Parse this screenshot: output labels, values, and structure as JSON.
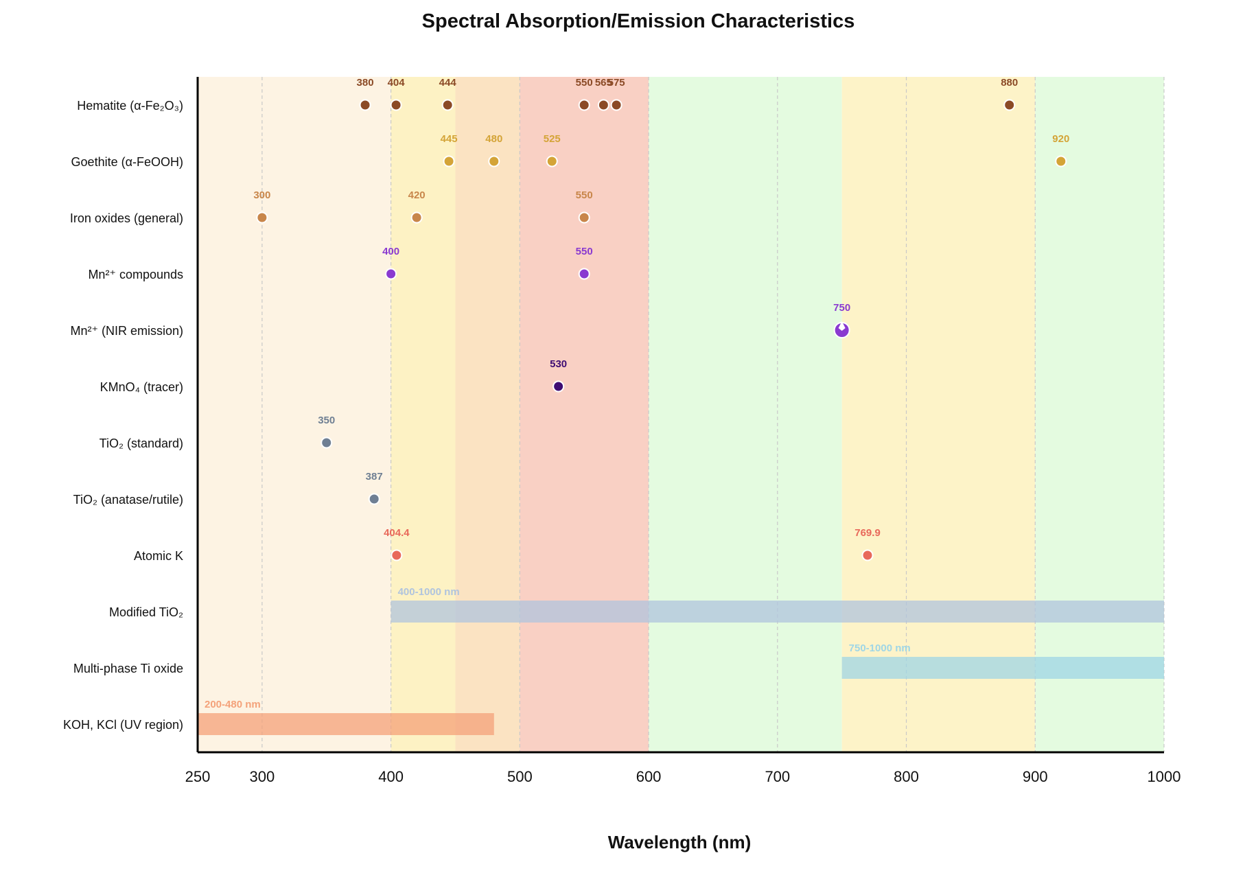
{
  "chart_data": {
    "type": "scatter",
    "title": "Spectral Absorption/Emission Characteristics",
    "xlabel": "Wavelength (nm)",
    "ylabel": "",
    "xlim": [
      250,
      1000
    ],
    "xticks": [
      250,
      300,
      400,
      500,
      600,
      700,
      800,
      900,
      1000
    ],
    "grid": true,
    "legend": "none",
    "bands": [
      {
        "x0": 250,
        "x1": 400,
        "color": "#fdf3e3"
      },
      {
        "x0": 400,
        "x1": 450,
        "color": "#fdf2c4"
      },
      {
        "x0": 450,
        "x1": 500,
        "color": "#fbe3c2"
      },
      {
        "x0": 500,
        "x1": 600,
        "color": "#f9d0c4"
      },
      {
        "x0": 600,
        "x1": 750,
        "color": "#e4fbe0"
      },
      {
        "x0": 750,
        "x1": 900,
        "color": "#fdf3c8"
      },
      {
        "x0": 900,
        "x1": 1000,
        "color": "#e4fbe0"
      }
    ],
    "categories": [
      "Hematite (α-Fe₂O₃)",
      "Goethite (α-FeOOH)",
      "Iron oxides (general)",
      "Mn²⁺ compounds",
      "Mn²⁺ (NIR emission)",
      "KMnO₄ (tracer)",
      "TiO₂ (standard)",
      "TiO₂ (anatase/rutile)",
      "Atomic K",
      "Modified TiO₂",
      "Multi-phase Ti oxide",
      "KOH, KCl (UV region)"
    ],
    "series": [
      {
        "category": "Hematite (α-Fe₂O₃)",
        "type": "points",
        "color": "#8b4a26",
        "points": [
          {
            "x": 380,
            "label": "380"
          },
          {
            "x": 404,
            "label": "404"
          },
          {
            "x": 444,
            "label": "444"
          },
          {
            "x": 550,
            "label": "550"
          },
          {
            "x": 565,
            "label": "565"
          },
          {
            "x": 575,
            "label": "575"
          },
          {
            "x": 880,
            "label": "880"
          }
        ]
      },
      {
        "category": "Goethite (α-FeOOH)",
        "type": "points",
        "color": "#d4a437",
        "points": [
          {
            "x": 445,
            "label": "445"
          },
          {
            "x": 480,
            "label": "480"
          },
          {
            "x": 525,
            "label": "525"
          },
          {
            "x": 920,
            "label": "920"
          }
        ]
      },
      {
        "category": "Iron oxides (general)",
        "type": "points",
        "color": "#c8864a",
        "points": [
          {
            "x": 300,
            "label": "300"
          },
          {
            "x": 420,
            "label": "420"
          },
          {
            "x": 550,
            "label": "550"
          }
        ]
      },
      {
        "category": "Mn²⁺ compounds",
        "type": "points",
        "color": "#8a3ad0",
        "points": [
          {
            "x": 400,
            "label": "400"
          },
          {
            "x": 550,
            "label": "550"
          }
        ]
      },
      {
        "category": "Mn²⁺ (NIR emission)",
        "type": "star",
        "color": "#8a3ad0",
        "points": [
          {
            "x": 750,
            "label": "750"
          }
        ]
      },
      {
        "category": "KMnO₄ (tracer)",
        "type": "points",
        "color": "#3f0d73",
        "points": [
          {
            "x": 530,
            "label": "530"
          }
        ]
      },
      {
        "category": "TiO₂ (standard)",
        "type": "points",
        "color": "#6f7f93",
        "points": [
          {
            "x": 350,
            "label": "350"
          }
        ]
      },
      {
        "category": "TiO₂ (anatase/rutile)",
        "type": "points",
        "color": "#6f7f93",
        "points": [
          {
            "x": 387,
            "label": "387"
          }
        ]
      },
      {
        "category": "Atomic K",
        "type": "points",
        "color": "#e8685a",
        "points": [
          {
            "x": 404.4,
            "label": "404.4"
          },
          {
            "x": 769.9,
            "label": "769.9"
          }
        ]
      },
      {
        "category": "Modified TiO₂",
        "type": "range",
        "color": "#b0c4de",
        "range": [
          400,
          1000
        ],
        "label": "400-1000 nm"
      },
      {
        "category": "Multi-phase Ti oxide",
        "type": "range",
        "color": "#9fd6e6",
        "range": [
          750,
          1000
        ],
        "label": "750-1000 nm"
      },
      {
        "category": "KOH, KCl (UV region)",
        "type": "range",
        "color": "#f4a27a",
        "range": [
          250,
          480
        ],
        "label": "200-480 nm"
      }
    ]
  }
}
